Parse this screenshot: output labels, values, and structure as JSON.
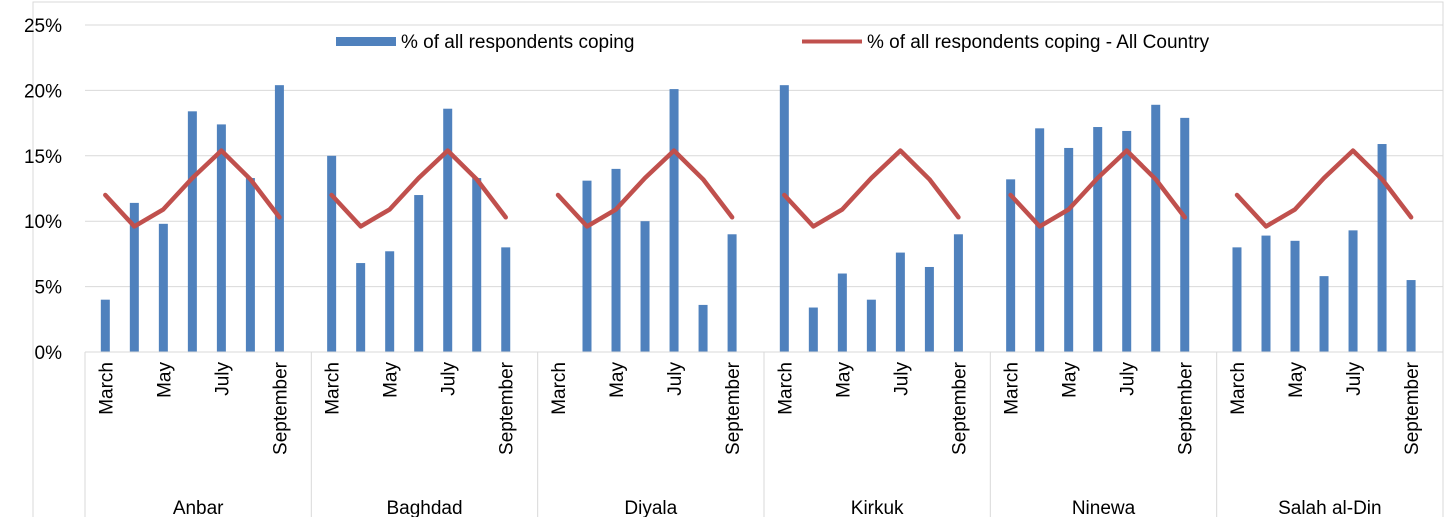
{
  "chart_data": {
    "type": "bar",
    "title": "",
    "xlabel": "",
    "ylabel": "",
    "ylim": [
      0,
      0.25
    ],
    "yticks": [
      "0%",
      "5%",
      "10%",
      "15%",
      "20%",
      "25%"
    ],
    "grid": true,
    "legend_position": "top",
    "month_labels": [
      "March",
      "",
      "May",
      "",
      "July",
      "",
      "September"
    ],
    "groups": [
      "Anbar",
      "Baghdad",
      "Diyala",
      "Kirkuk",
      "Ninewa",
      "Salah al-Din"
    ],
    "series": [
      {
        "name": "% of all respondents coping",
        "type": "bar",
        "color": "#4f81bd",
        "values": [
          [
            0.04,
            0.114,
            0.098,
            0.184,
            0.174,
            0.133,
            0.204
          ],
          [
            0.15,
            0.068,
            0.077,
            0.12,
            0.186,
            0.133,
            0.08
          ],
          [
            null,
            0.131,
            0.14,
            0.1,
            0.201,
            0.036,
            0.09
          ],
          [
            0.204,
            0.034,
            0.06,
            0.04,
            0.076,
            0.065,
            0.09
          ],
          [
            0.132,
            0.171,
            0.156,
            0.172,
            0.169,
            0.189,
            0.179
          ],
          [
            0.08,
            0.089,
            0.085,
            0.058,
            0.093,
            0.159,
            0.055
          ]
        ]
      },
      {
        "name": "% of all respondents coping - All Country",
        "type": "line",
        "color": "#c0504d",
        "values": [
          0.12,
          0.096,
          0.109,
          0.133,
          0.154,
          0.132,
          0.103
        ]
      }
    ]
  }
}
